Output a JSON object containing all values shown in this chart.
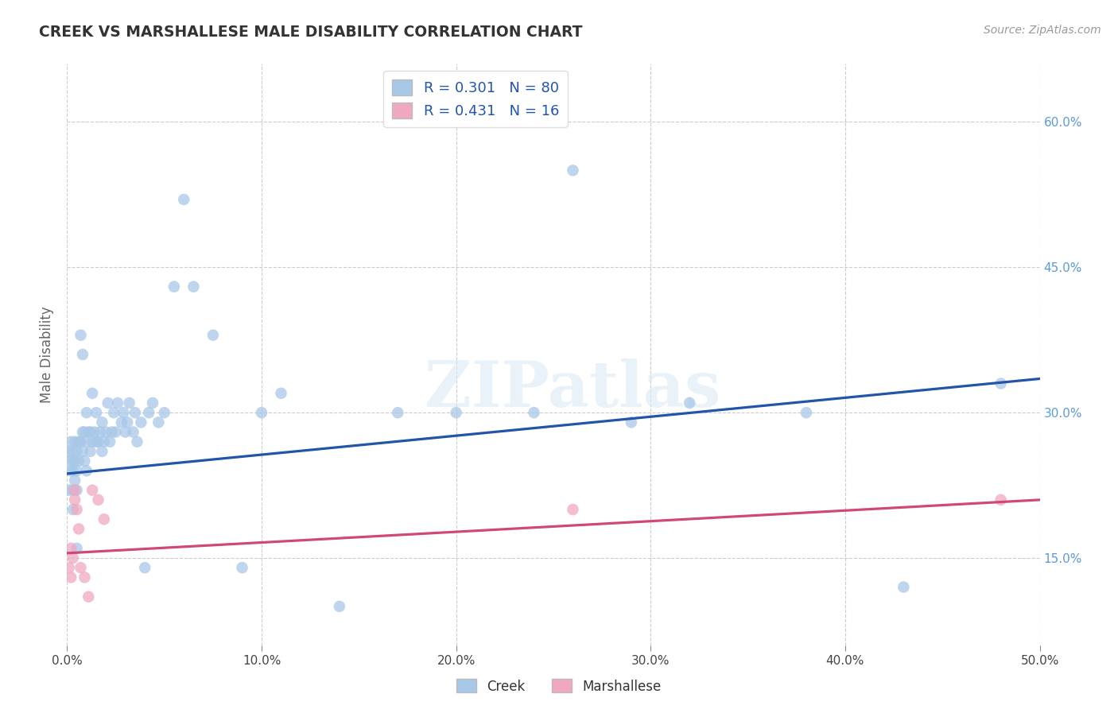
{
  "title": "CREEK VS MARSHALLESE MALE DISABILITY CORRELATION CHART",
  "source": "Source: ZipAtlas.com",
  "ylabel": "Male Disability",
  "xlim": [
    0.0,
    0.5
  ],
  "ylim": [
    0.06,
    0.66
  ],
  "xticks": [
    0.0,
    0.1,
    0.2,
    0.3,
    0.4,
    0.5
  ],
  "yticks": [
    0.15,
    0.3,
    0.45,
    0.6
  ],
  "creek_color": "#a8c8e8",
  "creek_line_color": "#2255aa",
  "marshallese_color": "#f0a8c0",
  "marshallese_line_color": "#d04878",
  "creek_R": 0.301,
  "creek_N": 80,
  "marshallese_R": 0.431,
  "marshallese_N": 16,
  "watermark": "ZIPatlas",
  "creek_x": [
    0.001,
    0.001,
    0.002,
    0.002,
    0.002,
    0.003,
    0.003,
    0.003,
    0.003,
    0.003,
    0.004,
    0.004,
    0.004,
    0.005,
    0.005,
    0.005,
    0.005,
    0.006,
    0.006,
    0.007,
    0.007,
    0.008,
    0.008,
    0.008,
    0.009,
    0.009,
    0.01,
    0.01,
    0.01,
    0.011,
    0.012,
    0.012,
    0.013,
    0.013,
    0.014,
    0.015,
    0.015,
    0.016,
    0.017,
    0.018,
    0.018,
    0.019,
    0.02,
    0.021,
    0.022,
    0.023,
    0.024,
    0.025,
    0.026,
    0.028,
    0.029,
    0.03,
    0.031,
    0.032,
    0.034,
    0.035,
    0.036,
    0.038,
    0.04,
    0.042,
    0.044,
    0.047,
    0.05,
    0.055,
    0.06,
    0.065,
    0.075,
    0.09,
    0.1,
    0.11,
    0.14,
    0.17,
    0.2,
    0.24,
    0.26,
    0.29,
    0.32,
    0.38,
    0.43,
    0.48
  ],
  "creek_y": [
    0.22,
    0.26,
    0.24,
    0.25,
    0.27,
    0.2,
    0.22,
    0.24,
    0.25,
    0.26,
    0.23,
    0.25,
    0.27,
    0.16,
    0.22,
    0.24,
    0.26,
    0.25,
    0.27,
    0.38,
    0.27,
    0.26,
    0.28,
    0.36,
    0.25,
    0.28,
    0.27,
    0.24,
    0.3,
    0.28,
    0.26,
    0.28,
    0.27,
    0.32,
    0.28,
    0.27,
    0.3,
    0.27,
    0.28,
    0.26,
    0.29,
    0.27,
    0.28,
    0.31,
    0.27,
    0.28,
    0.3,
    0.28,
    0.31,
    0.29,
    0.3,
    0.28,
    0.29,
    0.31,
    0.28,
    0.3,
    0.27,
    0.29,
    0.14,
    0.3,
    0.31,
    0.29,
    0.3,
    0.43,
    0.52,
    0.43,
    0.38,
    0.14,
    0.3,
    0.32,
    0.1,
    0.3,
    0.3,
    0.3,
    0.55,
    0.29,
    0.31,
    0.3,
    0.12,
    0.33
  ],
  "marshallese_x": [
    0.001,
    0.002,
    0.002,
    0.003,
    0.004,
    0.004,
    0.005,
    0.006,
    0.007,
    0.009,
    0.011,
    0.013,
    0.016,
    0.019,
    0.26,
    0.48
  ],
  "marshallese_y": [
    0.14,
    0.13,
    0.16,
    0.15,
    0.22,
    0.21,
    0.2,
    0.18,
    0.14,
    0.13,
    0.11,
    0.22,
    0.21,
    0.19,
    0.2,
    0.21
  ]
}
